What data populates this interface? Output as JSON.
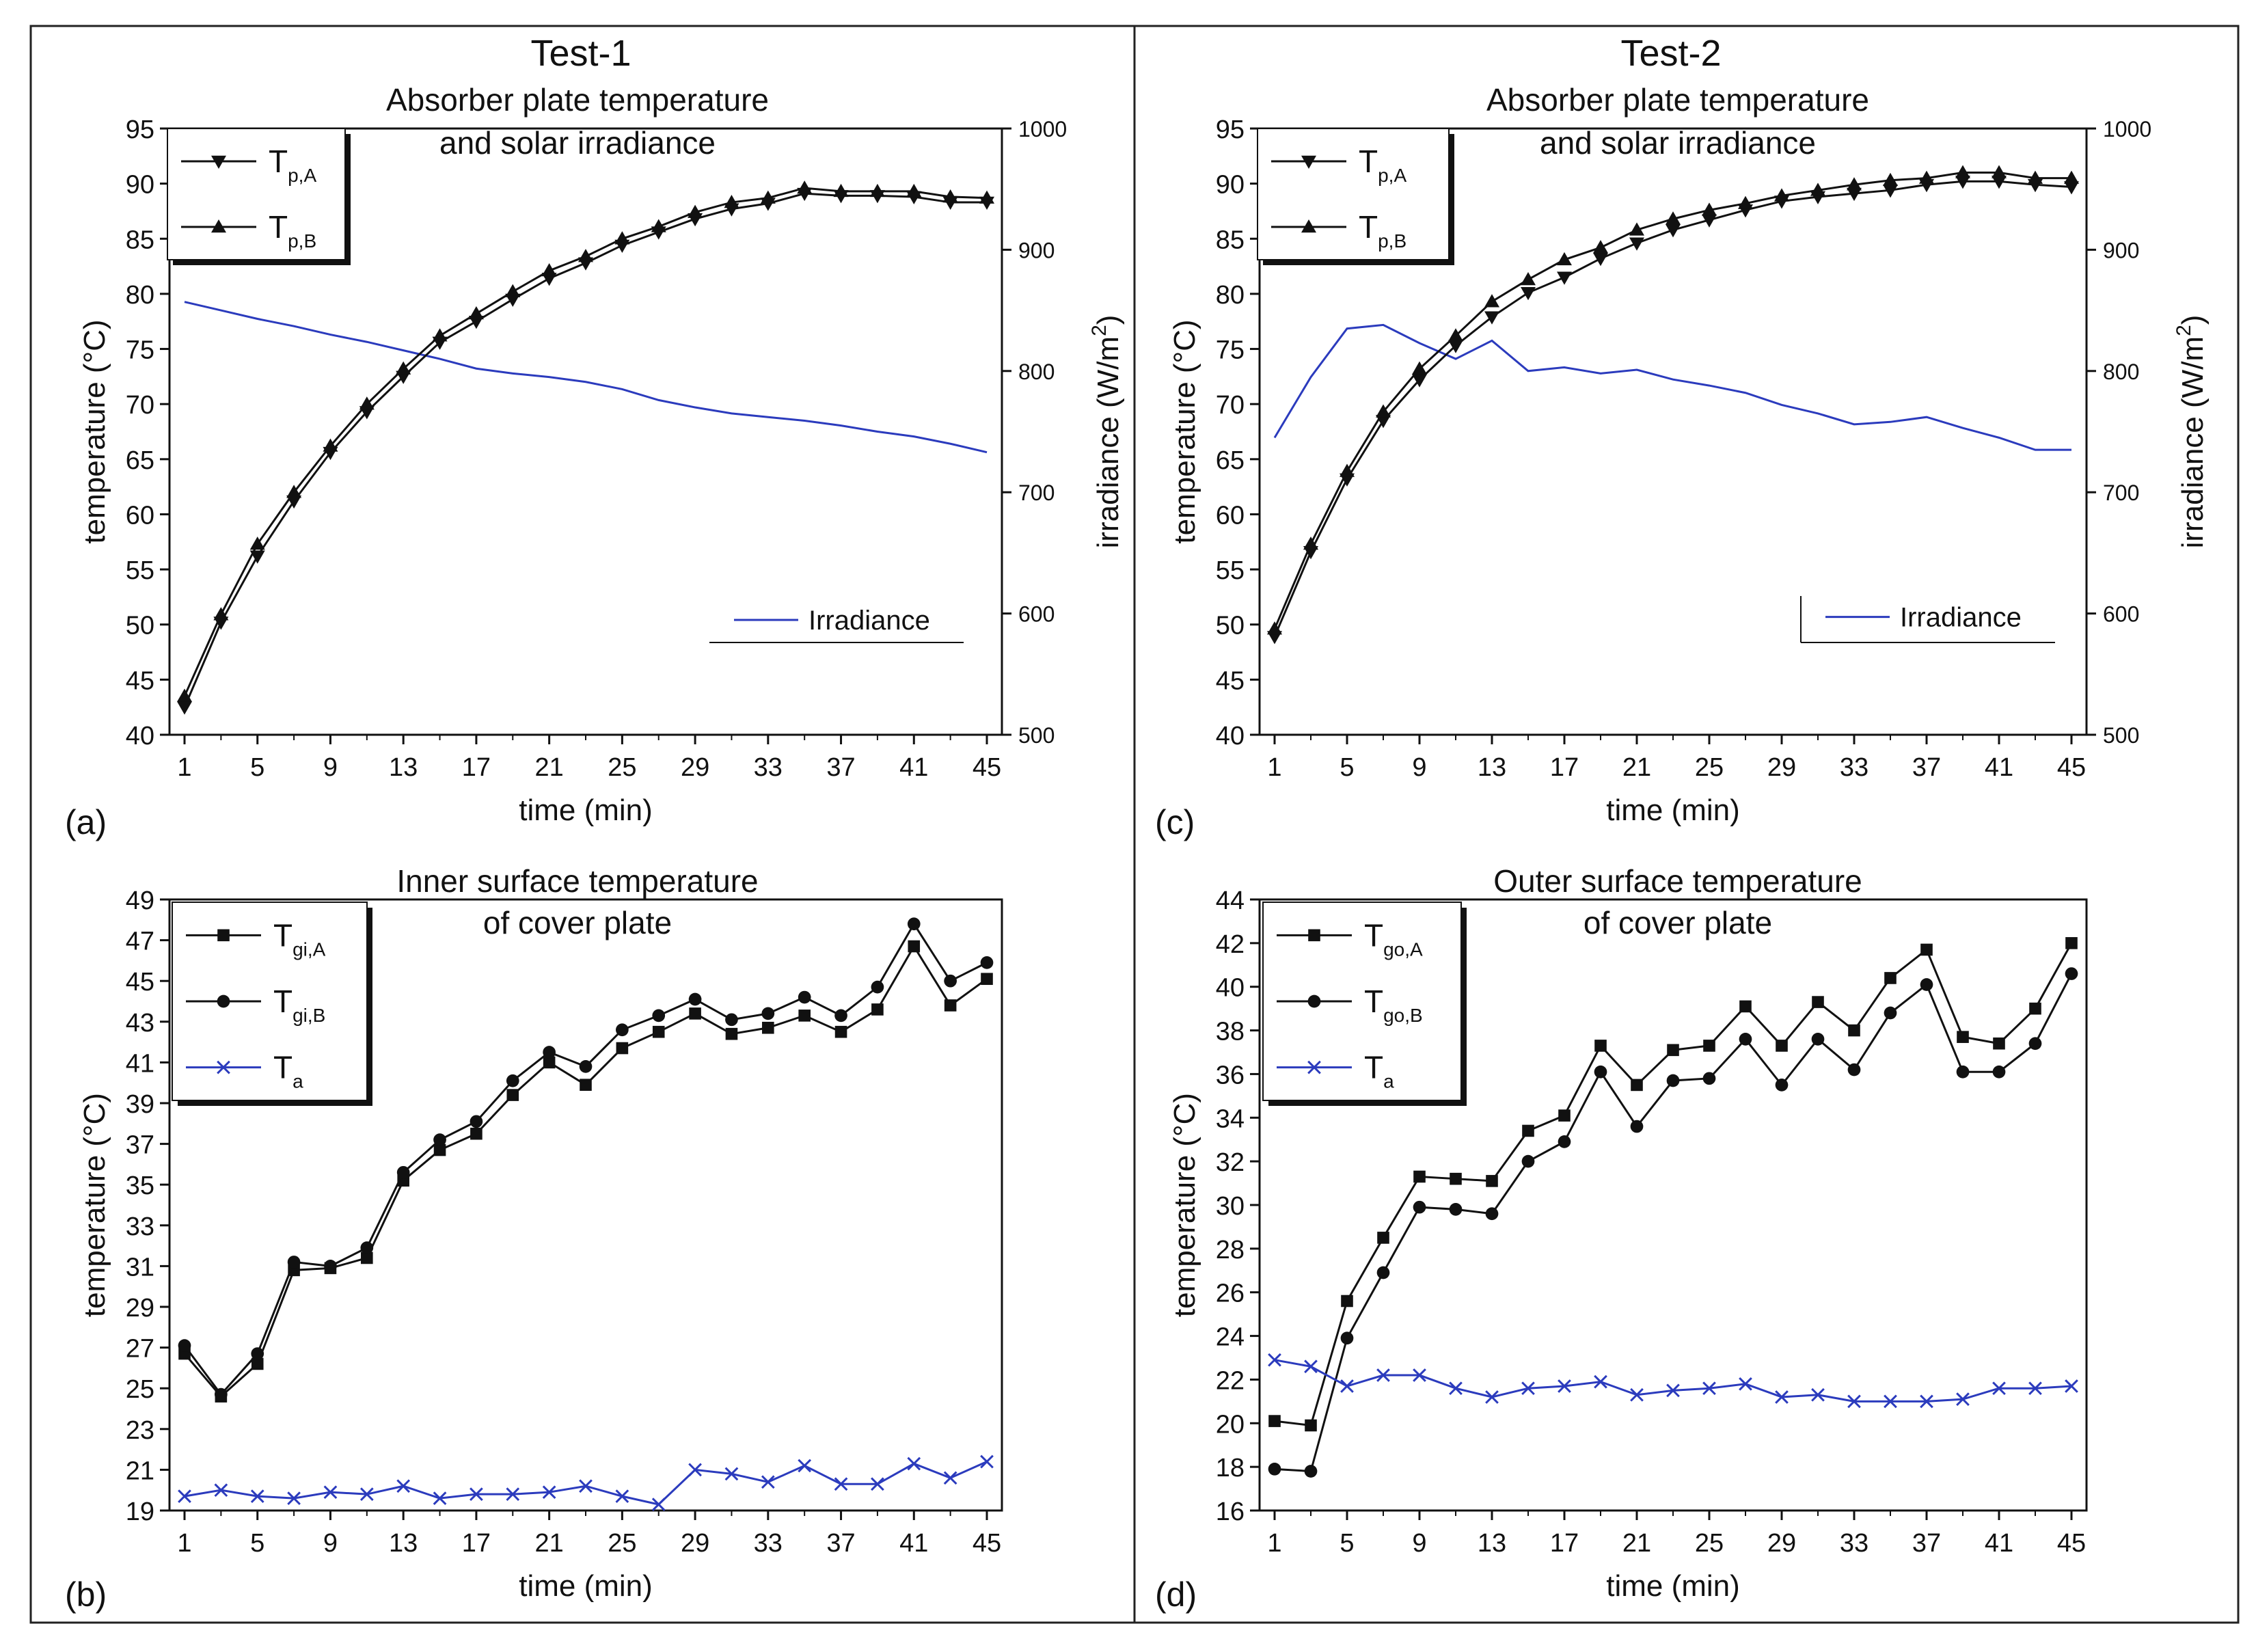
{
  "figure": {
    "test1_label": "Test-1",
    "test2_label": "Test-2"
  },
  "chart_data": [
    {
      "id": "a",
      "type": "line",
      "panel_label": "(a)",
      "title_lines": [
        "Absorber plate temperature",
        "and solar irradiance"
      ],
      "xlabel": "time (min)",
      "ylabel": "temperature (°C)",
      "ylabel_base": "temperature (",
      "ylabel_unit": "°C",
      "ylabel_end": ")",
      "y2label_base": "irradiance (W/m",
      "y2label_sup": "2",
      "y2label_end": ")",
      "x": [
        1,
        3,
        5,
        7,
        9,
        11,
        13,
        15,
        17,
        19,
        21,
        23,
        25,
        27,
        29,
        31,
        33,
        35,
        37,
        39,
        41,
        43,
        45
      ],
      "xticks": [
        1,
        5,
        9,
        13,
        17,
        21,
        25,
        29,
        33,
        37,
        41,
        45
      ],
      "ylim": [
        40,
        95
      ],
      "yticks": [
        40,
        45,
        50,
        55,
        60,
        65,
        70,
        75,
        80,
        85,
        90,
        95
      ],
      "y2lim": [
        500,
        1000
      ],
      "y2ticks": [
        500,
        600,
        700,
        800,
        900,
        1000
      ],
      "series": [
        {
          "name": "T_p,A",
          "label_main": "T",
          "label_sub": "p,A",
          "marker": "triangle-down",
          "color": "#111111",
          "values": [
            42.5,
            50.2,
            56.2,
            61.2,
            65.6,
            69.3,
            72.5,
            75.6,
            77.5,
            79.5,
            81.4,
            82.8,
            84.4,
            85.6,
            86.8,
            87.7,
            88.2,
            89.1,
            88.9,
            88.9,
            88.8,
            88.3,
            88.3
          ]
        },
        {
          "name": "T_p,B",
          "label_main": "T",
          "label_sub": "p,B",
          "marker": "triangle-up",
          "color": "#111111",
          "values": [
            43.5,
            50.9,
            57.3,
            62.0,
            66.2,
            70.0,
            73.2,
            76.2,
            78.2,
            80.2,
            82.1,
            83.4,
            85.0,
            86.1,
            87.4,
            88.3,
            88.7,
            89.6,
            89.3,
            89.3,
            89.3,
            88.8,
            88.7
          ]
        }
      ],
      "series_y2": [
        {
          "name": "Irradiance",
          "color": "#2b3bbd",
          "values": [
            857,
            850,
            843,
            837,
            830,
            824,
            817,
            810,
            802,
            798,
            795,
            791,
            785,
            776,
            770,
            765,
            762,
            759,
            755,
            750,
            746,
            740,
            733
          ]
        }
      ],
      "legend": "top-left",
      "legend2": "bottom-right"
    },
    {
      "id": "c",
      "type": "line",
      "panel_label": "(c)",
      "title_lines": [
        "Absorber plate temperature",
        "and solar irradiance"
      ],
      "xlabel": "time (min)",
      "ylabel": "temperature (°C)",
      "ylabel_base": "temperature (",
      "ylabel_unit": "°C",
      "ylabel_end": ")",
      "y2label_base": "irradiance (W/m",
      "y2label_sup": "2",
      "y2label_end": ")",
      "x": [
        1,
        3,
        5,
        7,
        9,
        11,
        13,
        15,
        17,
        19,
        21,
        23,
        25,
        27,
        29,
        31,
        33,
        35,
        37,
        39,
        41,
        43,
        45
      ],
      "xticks": [
        1,
        5,
        9,
        13,
        17,
        21,
        25,
        29,
        33,
        37,
        41,
        45
      ],
      "ylim": [
        40,
        95
      ],
      "yticks": [
        40,
        45,
        50,
        55,
        60,
        65,
        70,
        75,
        80,
        85,
        90,
        95
      ],
      "y2lim": [
        500,
        1000
      ],
      "y2ticks": [
        500,
        600,
        700,
        800,
        900,
        1000
      ],
      "series": [
        {
          "name": "T_p,A",
          "label_main": "T",
          "label_sub": "p,A",
          "marker": "triangle-down",
          "color": "#111111",
          "values": [
            48.9,
            56.6,
            63.2,
            68.5,
            72.2,
            75.3,
            77.9,
            80.1,
            81.5,
            83.2,
            84.6,
            85.8,
            86.7,
            87.6,
            88.4,
            88.8,
            89.1,
            89.4,
            89.9,
            90.2,
            90.2,
            89.9,
            89.7
          ]
        },
        {
          "name": "T_p,B",
          "label_main": "T",
          "label_sub": "p,B",
          "marker": "triangle-up",
          "color": "#111111",
          "values": [
            49.6,
            57.3,
            63.9,
            69.3,
            73.2,
            76.2,
            79.3,
            81.3,
            83.1,
            84.2,
            85.8,
            86.8,
            87.6,
            88.2,
            88.9,
            89.4,
            89.9,
            90.3,
            90.5,
            91.0,
            91.0,
            90.5,
            90.5
          ]
        }
      ],
      "series_y2": [
        {
          "name": "Irradiance",
          "color": "#2b3bbd",
          "values": [
            745,
            795,
            835,
            838,
            823,
            810,
            825,
            800,
            803,
            798,
            801,
            793,
            788,
            782,
            772,
            765,
            756,
            758,
            762,
            753,
            745,
            735,
            735
          ]
        }
      ],
      "legend": "top-left",
      "legend2": "bottom-right"
    },
    {
      "id": "b",
      "type": "line",
      "panel_label": "(b)",
      "title_lines": [
        "Inner surface temperature",
        "of cover plate"
      ],
      "xlabel": "time (min)",
      "ylabel": "temperature (°C)",
      "ylabel_base": "temperature (",
      "ylabel_unit": "°C",
      "ylabel_end": ")",
      "x": [
        1,
        3,
        5,
        7,
        9,
        11,
        13,
        15,
        17,
        19,
        21,
        23,
        25,
        27,
        29,
        31,
        33,
        35,
        37,
        39,
        41,
        43,
        45
      ],
      "xticks": [
        1,
        5,
        9,
        13,
        17,
        21,
        25,
        29,
        33,
        37,
        41,
        45
      ],
      "ylim": [
        19,
        49
      ],
      "yticks": [
        19,
        21,
        23,
        25,
        27,
        29,
        31,
        33,
        35,
        37,
        39,
        41,
        43,
        45,
        47,
        49
      ],
      "series": [
        {
          "name": "T_gi,A",
          "label_main": "T",
          "label_sub": "gi,A",
          "marker": "square",
          "color": "#111111",
          "values": [
            26.7,
            24.6,
            26.2,
            30.8,
            30.9,
            31.4,
            35.2,
            36.7,
            37.5,
            39.4,
            41.0,
            39.9,
            41.7,
            42.5,
            43.4,
            42.4,
            42.7,
            43.3,
            42.5,
            43.6,
            46.7,
            43.8,
            45.1
          ]
        },
        {
          "name": "T_gi,B",
          "label_main": "T",
          "label_sub": "gi,B",
          "marker": "circle",
          "color": "#111111",
          "values": [
            27.1,
            24.7,
            26.7,
            31.2,
            31.0,
            31.9,
            35.6,
            37.2,
            38.1,
            40.1,
            41.5,
            40.8,
            42.6,
            43.3,
            44.1,
            43.1,
            43.4,
            44.2,
            43.3,
            44.7,
            47.8,
            45.0,
            45.9
          ]
        },
        {
          "name": "T_a",
          "label_main": "T",
          "label_sub": "a",
          "marker": "x",
          "color": "#2b3bbd",
          "values": [
            19.7,
            20.0,
            19.7,
            19.6,
            19.9,
            19.8,
            20.2,
            19.6,
            19.8,
            19.8,
            19.9,
            20.2,
            19.7,
            19.3,
            21.0,
            20.8,
            20.4,
            21.2,
            20.3,
            20.3,
            21.3,
            20.6,
            21.4
          ]
        }
      ],
      "legend": "top-left"
    },
    {
      "id": "d",
      "type": "line",
      "panel_label": "(d)",
      "title_lines": [
        "Outer surface temperature",
        "of cover plate"
      ],
      "xlabel": "time (min)",
      "ylabel": "temperature (°C)",
      "ylabel_base": "temperature (",
      "ylabel_unit": "°C",
      "ylabel_end": ")",
      "x": [
        1,
        3,
        5,
        7,
        9,
        11,
        13,
        15,
        17,
        19,
        21,
        23,
        25,
        27,
        29,
        31,
        33,
        35,
        37,
        39,
        41,
        43,
        45
      ],
      "xticks": [
        1,
        5,
        9,
        13,
        17,
        21,
        25,
        29,
        33,
        37,
        41,
        45
      ],
      "ylim": [
        16,
        44
      ],
      "yticks": [
        16,
        18,
        20,
        22,
        24,
        26,
        28,
        30,
        32,
        34,
        36,
        38,
        40,
        42,
        44
      ],
      "series": [
        {
          "name": "T_go,A",
          "label_main": "T",
          "label_sub": "go,A",
          "marker": "square",
          "color": "#111111",
          "values": [
            20.1,
            19.9,
            25.6,
            28.5,
            31.3,
            31.2,
            31.1,
            33.4,
            34.1,
            37.3,
            35.5,
            37.1,
            37.3,
            39.1,
            37.3,
            39.3,
            38.0,
            40.4,
            41.7,
            37.7,
            37.4,
            39.0,
            42.0
          ]
        },
        {
          "name": "T_go,B",
          "label_main": "T",
          "label_sub": "go,B",
          "marker": "circle",
          "color": "#111111",
          "values": [
            17.9,
            17.8,
            23.9,
            26.9,
            29.9,
            29.8,
            29.6,
            32.0,
            32.9,
            36.1,
            33.6,
            35.7,
            35.8,
            37.6,
            35.5,
            37.6,
            36.2,
            38.8,
            40.1,
            36.1,
            36.1,
            37.4,
            40.6
          ]
        },
        {
          "name": "T_a",
          "label_main": "T",
          "label_sub": "a",
          "marker": "x",
          "color": "#2b3bbd",
          "values": [
            22.9,
            22.6,
            21.7,
            22.2,
            22.2,
            21.6,
            21.2,
            21.6,
            21.7,
            21.9,
            21.3,
            21.5,
            21.6,
            21.8,
            21.2,
            21.3,
            21.0,
            21.0,
            21.0,
            21.1,
            21.6,
            21.6,
            21.7
          ]
        }
      ],
      "legend": "top-left"
    }
  ]
}
